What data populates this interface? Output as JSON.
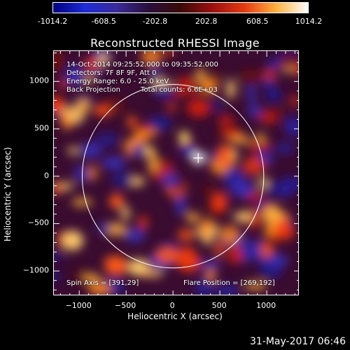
{
  "colorbar": {
    "ticks": [
      "-1014.2",
      "-608.5",
      "-202.8",
      "202.8",
      "608.5",
      "1014.2"
    ],
    "range": [
      -1014.2,
      1014.2
    ],
    "colors": [
      "#000080",
      "#1e2bd6",
      "#3a2a9a",
      "#2a0f3a",
      "#3a0a08",
      "#9a1010",
      "#e63a10",
      "#ffb040",
      "#ffffff"
    ]
  },
  "chart_data": {
    "type": "heatmap",
    "title": "Reconstructed RHESSI Image",
    "xlabel": "Heliocentric X (arcsec)",
    "ylabel": "Heliocentric Y (arcsec)",
    "xlim": [
      -1270,
      1350
    ],
    "ylim": [
      -1265,
      1320
    ],
    "xticks": [
      -1000,
      -500,
      0,
      500,
      1000
    ],
    "yticks": [
      1000,
      500,
      0,
      -500,
      -1000
    ],
    "xtick_labels": [
      "−1000",
      "−500",
      "0",
      "500",
      "1000"
    ],
    "ytick_labels": [
      "1000",
      "500",
      "0",
      "−500",
      "−1000"
    ],
    "solar_limb_radius": 968,
    "flare_position": [
      269,
      192
    ],
    "annotations": {
      "time": "14-Oct-2014 09:25:52.000 to 09:35:52.000",
      "detectors": "Detectors: 7F 8F 9F, Att 0",
      "energy": "Energy Range: 6.0 - 25.0 keV",
      "method": "Back Projection",
      "counts": "Total counts: 6.6E+03",
      "spin_axis": "Spin Axis = [391,29]",
      "flare_pos": "Flare Position = [269,192]"
    }
  },
  "timestamp": "31-May-2017 06:46"
}
